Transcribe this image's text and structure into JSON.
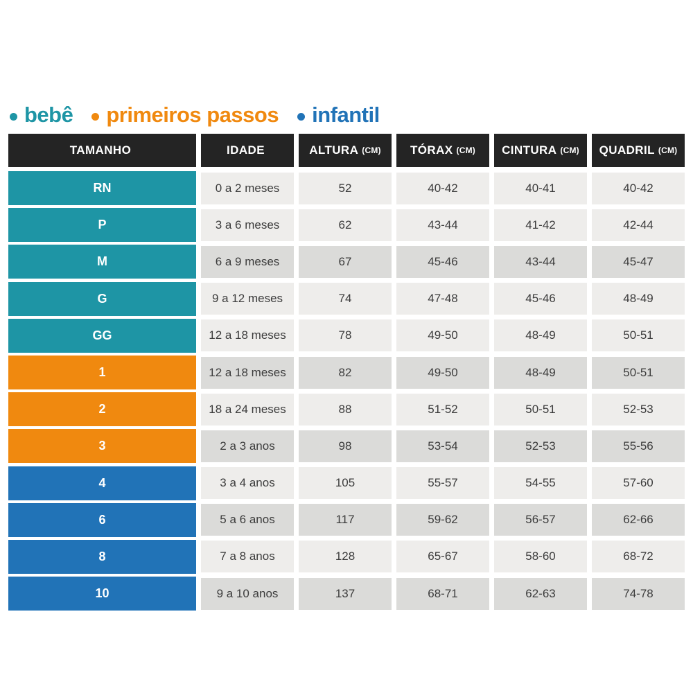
{
  "legend": {
    "items": [
      {
        "label": "bebê",
        "color": "#1e95a5",
        "category": "bebe"
      },
      {
        "label": "primeiros passos",
        "color": "#f0890f",
        "category": "primeiros_passos"
      },
      {
        "label": "infantil",
        "color": "#2173b7",
        "category": "infantil"
      }
    ]
  },
  "table": {
    "columns": [
      {
        "label": "TAMANHO",
        "unit": ""
      },
      {
        "label": "IDADE",
        "unit": ""
      },
      {
        "label": "ALTURA",
        "unit": "(CM)"
      },
      {
        "label": "TÓRAX",
        "unit": "(CM)"
      },
      {
        "label": "CINTURA",
        "unit": "(CM)"
      },
      {
        "label": "QUADRIL",
        "unit": "(CM)"
      }
    ],
    "rows": [
      {
        "size": "RN",
        "category": "bebe",
        "shade": "light",
        "cells": [
          "0 a 2 meses",
          "52",
          "40-42",
          "40-41",
          "40-42"
        ]
      },
      {
        "size": "P",
        "category": "bebe",
        "shade": "light",
        "cells": [
          "3 a 6 meses",
          "62",
          "43-44",
          "41-42",
          "42-44"
        ]
      },
      {
        "size": "M",
        "category": "bebe",
        "shade": "dark",
        "cells": [
          "6 a 9 meses",
          "67",
          "45-46",
          "43-44",
          "45-47"
        ]
      },
      {
        "size": "G",
        "category": "bebe",
        "shade": "light",
        "cells": [
          "9 a 12 meses",
          "74",
          "47-48",
          "45-46",
          "48-49"
        ]
      },
      {
        "size": "GG",
        "category": "bebe",
        "shade": "light",
        "cells": [
          "12 a 18 meses",
          "78",
          "49-50",
          "48-49",
          "50-51"
        ]
      },
      {
        "size": "1",
        "category": "primeiros_passos",
        "shade": "dark",
        "cells": [
          "12 a 18 meses",
          "82",
          "49-50",
          "48-49",
          "50-51"
        ]
      },
      {
        "size": "2",
        "category": "primeiros_passos",
        "shade": "light",
        "cells": [
          "18 a 24 meses",
          "88",
          "51-52",
          "50-51",
          "52-53"
        ]
      },
      {
        "size": "3",
        "category": "primeiros_passos",
        "shade": "dark",
        "cells": [
          "2 a 3 anos",
          "98",
          "53-54",
          "52-53",
          "55-56"
        ]
      },
      {
        "size": "4",
        "category": "infantil",
        "shade": "light",
        "cells": [
          "3 a 4 anos",
          "105",
          "55-57",
          "54-55",
          "57-60"
        ]
      },
      {
        "size": "6",
        "category": "infantil",
        "shade": "dark",
        "cells": [
          "5 a 6 anos",
          "117",
          "59-62",
          "56-57",
          "62-66"
        ]
      },
      {
        "size": "8",
        "category": "infantil",
        "shade": "light",
        "cells": [
          "7 a 8 anos",
          "128",
          "65-67",
          "58-60",
          "68-72"
        ]
      },
      {
        "size": "10",
        "category": "infantil",
        "shade": "dark",
        "cells": [
          "9 a 10 anos",
          "137",
          "68-71",
          "62-63",
          "74-78"
        ]
      }
    ]
  },
  "colors": {
    "page_bg": "#ffffff",
    "bebe": "#1e95a5",
    "primeiros_passos": "#f0890f",
    "infantil": "#2173b7",
    "header_bg": "#242424",
    "header_text": "#ffffff",
    "cell_light": "#eeedeb",
    "cell_dark": "#dbdbd9",
    "cell_text": "#3c3c3c"
  },
  "chart_data": {
    "type": "table",
    "title": "",
    "legend_entries": [
      "bebê",
      "primeiros passos",
      "infantil"
    ],
    "columns": [
      "TAMANHO",
      "IDADE",
      "ALTURA (CM)",
      "TÓRAX (CM)",
      "CINTURA (CM)",
      "QUADRIL (CM)"
    ],
    "groups": [
      {
        "name": "bebê",
        "color": "#1e95a5",
        "sizes": [
          "RN",
          "P",
          "M",
          "G",
          "GG"
        ]
      },
      {
        "name": "primeiros passos",
        "color": "#f0890f",
        "sizes": [
          "1",
          "2",
          "3"
        ]
      },
      {
        "name": "infantil",
        "color": "#2173b7",
        "sizes": [
          "4",
          "6",
          "8",
          "10"
        ]
      }
    ],
    "rows": [
      [
        "RN",
        "0 a 2 meses",
        "52",
        "40-42",
        "40-41",
        "40-42"
      ],
      [
        "P",
        "3 a 6 meses",
        "62",
        "43-44",
        "41-42",
        "42-44"
      ],
      [
        "M",
        "6 a 9 meses",
        "67",
        "45-46",
        "43-44",
        "45-47"
      ],
      [
        "G",
        "9 a 12 meses",
        "74",
        "47-48",
        "45-46",
        "48-49"
      ],
      [
        "GG",
        "12 a 18 meses",
        "78",
        "49-50",
        "48-49",
        "50-51"
      ],
      [
        "1",
        "12 a 18 meses",
        "82",
        "49-50",
        "48-49",
        "50-51"
      ],
      [
        "2",
        "18 a 24 meses",
        "88",
        "51-52",
        "50-51",
        "52-53"
      ],
      [
        "3",
        "2 a 3 anos",
        "98",
        "53-54",
        "52-53",
        "55-56"
      ],
      [
        "4",
        "3 a 4 anos",
        "105",
        "55-57",
        "54-55",
        "57-60"
      ],
      [
        "6",
        "5 a 6 anos",
        "117",
        "59-62",
        "56-57",
        "62-66"
      ],
      [
        "8",
        "7 a 8 anos",
        "128",
        "65-67",
        "58-60",
        "68-72"
      ],
      [
        "10",
        "9 a 10 anos",
        "137",
        "68-71",
        "62-63",
        "74-78"
      ]
    ]
  }
}
